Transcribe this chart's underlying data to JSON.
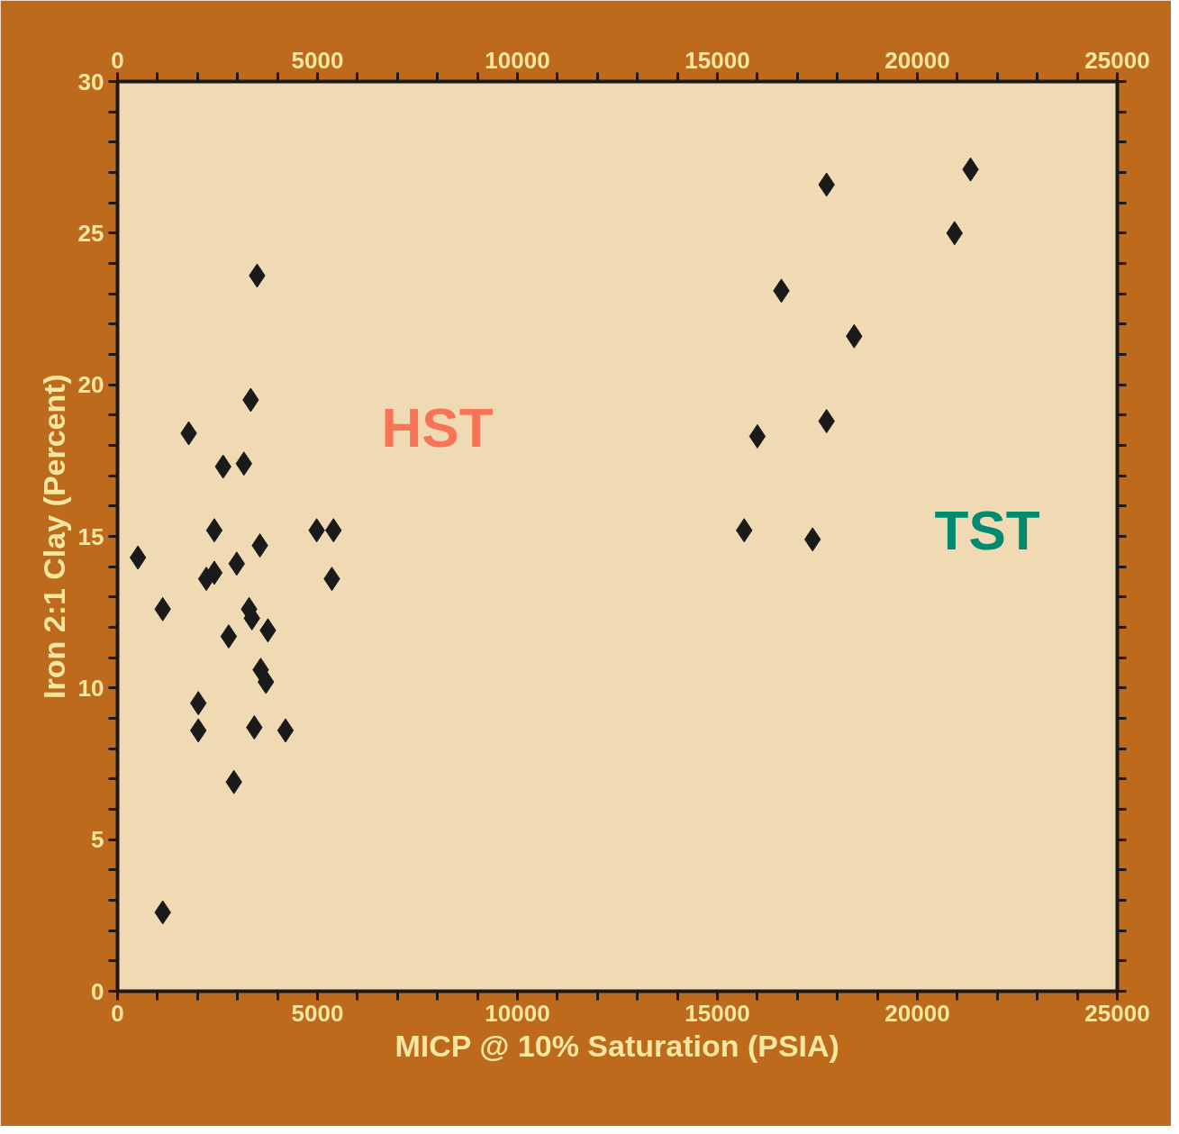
{
  "chart_data": {
    "type": "scatter",
    "xlabel": "MICP @ 10% Saturation (PSIA)",
    "ylabel": "Iron 2:1 Clay (Percent)",
    "xlim": [
      0,
      25000
    ],
    "xticks": [
      0,
      5000,
      10000,
      15000,
      20000,
      25000
    ],
    "x2lim": [
      0,
      25000
    ],
    "x2ticks": [
      0,
      5000,
      10000,
      15000,
      20000,
      25000
    ],
    "ylim": [
      0,
      30
    ],
    "yticks": [
      0,
      5,
      10,
      15,
      20,
      25,
      30
    ],
    "marker": "diamond",
    "grid": false,
    "series": [
      {
        "name": "HST",
        "color": "#1a1a1a",
        "x": [
          510,
          1130,
          1780,
          1130,
          2020,
          2020,
          2220,
          2420,
          2420,
          2640,
          3160,
          2780,
          2980,
          2910,
          3330,
          3490,
          3290,
          3360,
          3560,
          3580,
          3710,
          3760,
          3420,
          4200,
          4980,
          5400,
          5360
        ],
        "values": [
          14.3,
          12.6,
          18.4,
          2.6,
          9.5,
          8.6,
          13.6,
          13.8,
          15.2,
          17.3,
          17.4,
          11.7,
          14.1,
          6.9,
          19.5,
          23.6,
          12.6,
          12.3,
          14.7,
          10.6,
          10.2,
          11.9,
          8.7,
          8.6,
          15.2,
          15.2,
          13.6
        ]
      },
      {
        "name": "TST",
        "color": "#1a1a1a",
        "x": [
          17730,
          21330,
          20930,
          16600,
          18420,
          16000,
          17730,
          15670,
          17380
        ],
        "values": [
          26.6,
          27.1,
          25.0,
          23.1,
          21.6,
          18.3,
          18.8,
          15.2,
          14.9
        ]
      }
    ]
  }
}
